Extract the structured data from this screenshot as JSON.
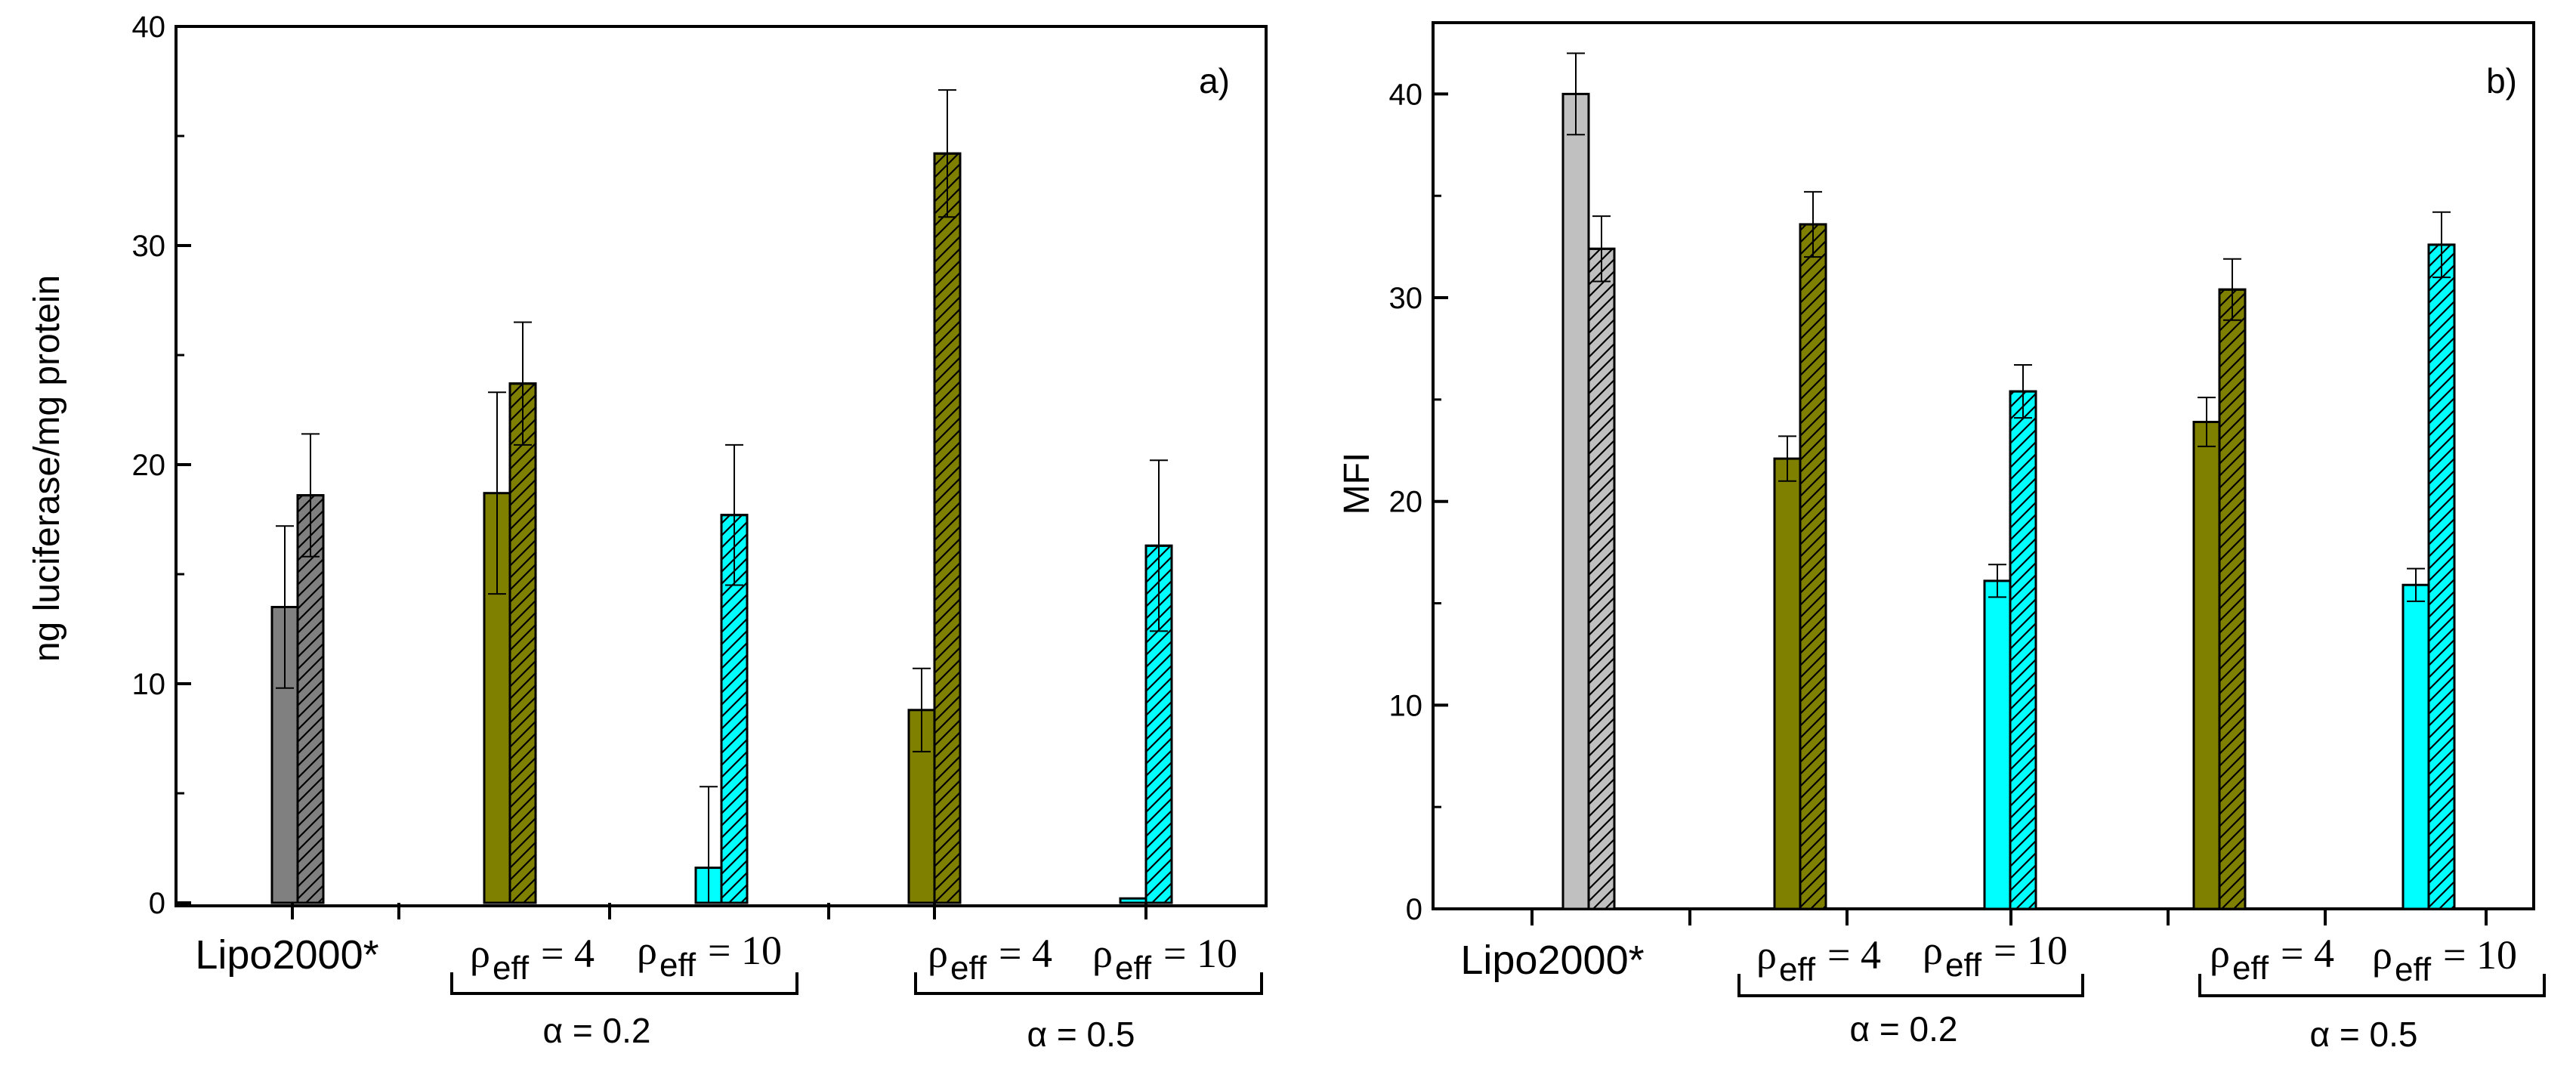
{
  "chart_data": [
    {
      "type": "bar",
      "panel_label": "a)",
      "ylabel": "ng luciferase/mg protein",
      "ylim": [
        0,
        40
      ],
      "yticks": [
        "0",
        "10",
        "20",
        "30",
        "40"
      ],
      "groups": [
        {
          "name": "Lipo2000*",
          "color": "#808080",
          "bars": [
            {
              "value": 13.5,
              "error": 3.7,
              "hatched": false
            },
            {
              "value": 18.6,
              "error": 2.8,
              "hatched": true
            }
          ]
        },
        {
          "name": "α=0.2 ρeff=4",
          "color": "#808000",
          "bars": [
            {
              "value": 18.7,
              "error": 4.6,
              "hatched": false
            },
            {
              "value": 23.7,
              "error": 2.8,
              "hatched": true
            }
          ]
        },
        {
          "name": "α=0.2 ρeff=10",
          "color": "#00ffff",
          "bars": [
            {
              "value": 1.6,
              "error": 3.7,
              "hatched": false
            },
            {
              "value": 17.7,
              "error": 3.2,
              "hatched": true
            }
          ]
        },
        {
          "name": "α=0.5 ρeff=4",
          "color": "#808000",
          "bars": [
            {
              "value": 8.8,
              "error": 1.9,
              "hatched": false
            },
            {
              "value": 34.2,
              "error": 2.9,
              "hatched": true
            }
          ]
        },
        {
          "name": "α=0.5 ρeff=10",
          "color": "#00ffff",
          "bars": [
            {
              "value": 0.2,
              "error": 0,
              "hatched": false
            },
            {
              "value": 16.3,
              "error": 3.9,
              "hatched": true
            }
          ]
        }
      ]
    },
    {
      "type": "bar",
      "panel_label": "b)",
      "ylabel": "MFI",
      "ylim": [
        0,
        43.5
      ],
      "yticks": [
        "0",
        "10",
        "20",
        "30",
        "40"
      ],
      "groups": [
        {
          "name": "Lipo2000*",
          "color": "#c0c0c0",
          "bars": [
            {
              "value": 40.0,
              "error": 2.0,
              "hatched": false
            },
            {
              "value": 32.4,
              "error": 1.6,
              "hatched": true
            }
          ]
        },
        {
          "name": "α=0.2 ρeff=4",
          "color": "#808000",
          "bars": [
            {
              "value": 22.1,
              "error": 1.1,
              "hatched": false
            },
            {
              "value": 33.6,
              "error": 1.6,
              "hatched": true
            }
          ]
        },
        {
          "name": "α=0.2 ρeff=10",
          "color": "#00ffff",
          "bars": [
            {
              "value": 16.1,
              "error": 0.8,
              "hatched": false
            },
            {
              "value": 25.4,
              "error": 1.3,
              "hatched": true
            }
          ]
        },
        {
          "name": "α=0.5 ρeff=4",
          "color": "#808000",
          "bars": [
            {
              "value": 23.9,
              "error": 1.2,
              "hatched": false
            },
            {
              "value": 30.4,
              "error": 1.5,
              "hatched": true
            }
          ]
        },
        {
          "name": "α=0.5 ρeff=10",
          "color": "#00ffff",
          "bars": [
            {
              "value": 15.9,
              "error": 0.8,
              "hatched": false
            },
            {
              "value": 32.6,
              "error": 1.6,
              "hatched": true
            }
          ]
        }
      ]
    }
  ],
  "x_labels": {
    "lipo": "Lipo2000*",
    "rho_symbol": "ρ",
    "rho_sub": "eff",
    "rho4_value": " = 4",
    "rho10_value": " = 10",
    "alpha02": "α = 0.2",
    "alpha05": "α = 0.5"
  }
}
